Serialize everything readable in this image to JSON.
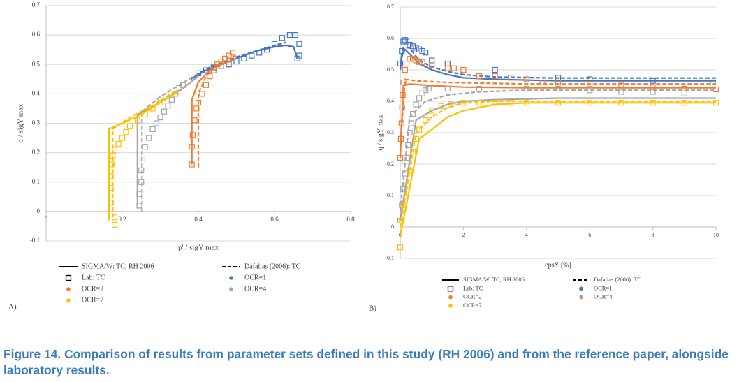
{
  "chart_data": [
    {
      "type": "line",
      "panel": "A)",
      "xlabel": "p' / sigY max",
      "ylabel": "q / sigY max",
      "xlim": [
        0,
        0.8
      ],
      "ylim": [
        -0.1,
        0.7
      ],
      "xticks": [
        0,
        0.2,
        0.4,
        0.6,
        0.8
      ],
      "yticks": [
        -0.1,
        0,
        0.1,
        0.2,
        0.3,
        0.4,
        0.5,
        0.6,
        0.7
      ],
      "grid": true,
      "legend": [
        {
          "label": "SIGMA/W: TC, RH 2006",
          "marker": "solid",
          "color": "#000000"
        },
        {
          "label": "Dafalias (2006): TC",
          "marker": "dashed",
          "color": "#000000"
        },
        {
          "label": "Lab: TC",
          "marker": "square",
          "color": "#000000"
        },
        {
          "label": "OCR=1",
          "marker": "dot",
          "color": "#4472c4"
        },
        {
          "label": "OCR=2",
          "marker": "dot",
          "color": "#ed7d31"
        },
        {
          "label": "OCR=4",
          "marker": "dot",
          "color": "#a5a5a5"
        },
        {
          "label": "OCR=7",
          "marker": "dot",
          "color": "#ffc000"
        }
      ],
      "series": [
        {
          "style": "solid",
          "color": "#4472c4",
          "x": [
            0.38,
            0.42,
            0.46,
            0.5,
            0.55,
            0.6,
            0.63,
            0.65,
            0.66
          ],
          "values": [
            0.45,
            0.48,
            0.5,
            0.52,
            0.545,
            0.56,
            0.565,
            0.56,
            0.52
          ]
        },
        {
          "style": "dashed",
          "color": "#4472c4",
          "x": [
            0.38,
            0.42,
            0.46,
            0.5,
            0.55,
            0.6,
            0.63
          ],
          "values": [
            0.45,
            0.485,
            0.505,
            0.525,
            0.545,
            0.565,
            0.575
          ]
        },
        {
          "style": "square",
          "color": "#4472c4",
          "x": [
            0.4,
            0.42,
            0.44,
            0.46,
            0.48,
            0.5,
            0.52,
            0.54,
            0.56,
            0.58,
            0.6,
            0.62,
            0.64,
            0.655,
            0.665,
            0.665,
            0.66
          ],
          "values": [
            0.47,
            0.48,
            0.49,
            0.495,
            0.5,
            0.51,
            0.52,
            0.53,
            0.54,
            0.55,
            0.57,
            0.59,
            0.6,
            0.6,
            0.57,
            0.53,
            0.52
          ]
        },
        {
          "style": "solid",
          "color": "#ed7d31",
          "x": [
            0.383,
            0.383,
            0.4,
            0.43,
            0.46,
            0.5
          ],
          "values": [
            0.16,
            0.38,
            0.44,
            0.48,
            0.5,
            0.52
          ]
        },
        {
          "style": "dashed",
          "color": "#ed7d31",
          "x": [
            0.4,
            0.4,
            0.42,
            0.45,
            0.48,
            0.5
          ],
          "values": [
            0.15,
            0.4,
            0.46,
            0.5,
            0.52,
            0.53
          ]
        },
        {
          "style": "square",
          "color": "#ed7d31",
          "x": [
            0.383,
            0.383,
            0.385,
            0.39,
            0.395,
            0.4,
            0.41,
            0.42,
            0.43,
            0.44,
            0.45,
            0.46,
            0.47,
            0.48,
            0.49
          ],
          "values": [
            0.16,
            0.22,
            0.26,
            0.31,
            0.35,
            0.37,
            0.4,
            0.43,
            0.46,
            0.48,
            0.5,
            0.51,
            0.52,
            0.53,
            0.54
          ]
        },
        {
          "style": "solid",
          "color": "#a5a5a5",
          "x": [
            0.24,
            0.24,
            0.3,
            0.36,
            0.4
          ],
          "values": [
            0.02,
            0.33,
            0.37,
            0.42,
            0.46
          ]
        },
        {
          "style": "dashed",
          "color": "#a5a5a5",
          "x": [
            0.252,
            0.252,
            0.3,
            0.35,
            0.4
          ],
          "values": [
            0,
            0.34,
            0.39,
            0.43,
            0.47
          ]
        },
        {
          "style": "square",
          "color": "#a5a5a5",
          "x": [
            0.245,
            0.245,
            0.25,
            0.25,
            0.253,
            0.26,
            0.27,
            0.28,
            0.29,
            0.3,
            0.31,
            0.32,
            0.33,
            0.34,
            0.35,
            0.36
          ],
          "values": [
            0.02,
            0.06,
            0.1,
            0.14,
            0.18,
            0.22,
            0.25,
            0.28,
            0.3,
            0.32,
            0.34,
            0.36,
            0.38,
            0.4,
            0.42,
            0.43
          ]
        },
        {
          "style": "solid",
          "color": "#ffc000",
          "x": [
            0.165,
            0.165,
            0.2,
            0.25,
            0.3,
            0.35
          ],
          "values": [
            -0.03,
            0.28,
            0.3,
            0.33,
            0.37,
            0.41
          ]
        },
        {
          "style": "dashed",
          "color": "#ffc000",
          "x": [
            0.175,
            0.175,
            0.22,
            0.28,
            0.34
          ],
          "values": [
            -0.02,
            0.28,
            0.32,
            0.36,
            0.41
          ]
        },
        {
          "style": "square",
          "color": "#ffc000",
          "x": [
            0.18,
            0.18,
            0.17,
            0.17,
            0.17,
            0.172,
            0.175,
            0.18,
            0.19,
            0.2,
            0.21,
            0.22,
            0.24,
            0.26,
            0.28,
            0.3
          ],
          "values": [
            -0.045,
            -0.02,
            0.03,
            0.08,
            0.12,
            0.16,
            0.19,
            0.21,
            0.23,
            0.25,
            0.27,
            0.29,
            0.31,
            0.33,
            0.35,
            0.37
          ]
        }
      ]
    },
    {
      "type": "line",
      "panel": "B)",
      "xlabel": "epsY [%]",
      "ylabel": "q / sigY max",
      "xlim": [
        0,
        10
      ],
      "ylim": [
        -0.1,
        0.7
      ],
      "xticks": [
        0,
        2,
        4,
        6,
        8,
        10
      ],
      "yticks": [
        -0.1,
        0,
        0.1,
        0.2,
        0.3,
        0.4,
        0.5,
        0.6,
        0.7
      ],
      "grid": true,
      "legend": [
        {
          "label": "SIGMA/W: TC, RH 2006",
          "marker": "solid",
          "color": "#000000"
        },
        {
          "label": "Dafalias (2006): TC",
          "marker": "dashed",
          "color": "#000000"
        },
        {
          "label": "Lab: TC",
          "marker": "square",
          "color": "#000000"
        },
        {
          "label": "OCR=1",
          "marker": "dot",
          "color": "#4472c4"
        },
        {
          "label": "OCR=2",
          "marker": "dot",
          "color": "#ed7d31"
        },
        {
          "label": "OCR=4",
          "marker": "dot",
          "color": "#a5a5a5"
        },
        {
          "label": "OCR=7",
          "marker": "dot",
          "color": "#ffc000"
        }
      ],
      "series": [
        {
          "style": "solid",
          "color": "#4472c4",
          "x": [
            0,
            0.05,
            0.15,
            0.3,
            0.6,
            1,
            1.5,
            2,
            3,
            5,
            10
          ],
          "values": [
            0.5,
            0.55,
            0.565,
            0.55,
            0.52,
            0.5,
            0.485,
            0.475,
            0.47,
            0.465,
            0.465
          ]
        },
        {
          "style": "dashed",
          "color": "#4472c4",
          "x": [
            0,
            0.1,
            0.3,
            0.6,
            1,
            1.5,
            2,
            3,
            5,
            10
          ],
          "values": [
            0.5,
            0.57,
            0.57,
            0.53,
            0.51,
            0.495,
            0.485,
            0.477,
            0.474,
            0.474
          ]
        },
        {
          "style": "square",
          "color": "#4472c4",
          "x": [
            0,
            0.05,
            0.1,
            0.15,
            0.2,
            0.3,
            0.4,
            0.5,
            0.6,
            0.7,
            0.8,
            1,
            1.5,
            3,
            5,
            6,
            8,
            9.9
          ],
          "values": [
            0.52,
            0.56,
            0.59,
            0.595,
            0.59,
            0.58,
            0.575,
            0.57,
            0.565,
            0.56,
            0.555,
            0.53,
            0.52,
            0.5,
            0.475,
            0.47,
            0.465,
            0.46
          ]
        },
        {
          "style": "solid",
          "color": "#ed7d31",
          "x": [
            0,
            0.1,
            0.3,
            1,
            2,
            4,
            10
          ],
          "values": [
            0.22,
            0.45,
            0.455,
            0.45,
            0.445,
            0.443,
            0.443
          ]
        },
        {
          "style": "dashed",
          "color": "#ed7d31",
          "x": [
            0,
            0.15,
            0.5,
            1.5,
            4,
            10
          ],
          "values": [
            0.25,
            0.47,
            0.465,
            0.46,
            0.455,
            0.455
          ]
        },
        {
          "style": "square",
          "color": "#ed7d31",
          "x": [
            0,
            0.02,
            0.04,
            0.06,
            0.08,
            0.1,
            0.15,
            0.2,
            0.3,
            0.4,
            0.5,
            0.6,
            0.7,
            1,
            1.5,
            1.7,
            2,
            2.5,
            3,
            3.5,
            4,
            4.5,
            5,
            6,
            7,
            8,
            9,
            10
          ],
          "values": [
            0.22,
            0.28,
            0.33,
            0.38,
            0.42,
            0.46,
            0.5,
            0.52,
            0.535,
            0.535,
            0.53,
            0.525,
            0.525,
            0.515,
            0.505,
            0.505,
            0.5,
            0.48,
            0.48,
            0.475,
            0.47,
            0.46,
            0.46,
            0.455,
            0.45,
            0.445,
            0.44,
            0.438
          ]
        },
        {
          "style": "solid",
          "color": "#a5a5a5",
          "x": [
            0,
            0.5,
            1,
            1.5,
            2,
            3,
            5,
            10
          ],
          "values": [
            0.02,
            0.34,
            0.37,
            0.39,
            0.4,
            0.405,
            0.41,
            0.41
          ]
        },
        {
          "style": "dashed",
          "color": "#a5a5a5",
          "x": [
            0,
            0.3,
            0.8,
            1.5,
            2.5,
            4,
            10
          ],
          "values": [
            0.05,
            0.35,
            0.4,
            0.42,
            0.43,
            0.435,
            0.435
          ]
        },
        {
          "style": "square",
          "color": "#a5a5a5",
          "x": [
            0,
            0.05,
            0.1,
            0.15,
            0.2,
            0.25,
            0.3,
            0.35,
            0.4,
            0.5,
            0.6,
            0.7,
            0.8,
            0.9,
            1.5,
            2.5,
            4,
            5,
            6,
            7,
            8,
            9
          ],
          "values": [
            0.02,
            0.07,
            0.12,
            0.17,
            0.22,
            0.26,
            0.3,
            0.33,
            0.36,
            0.39,
            0.41,
            0.425,
            0.435,
            0.44,
            0.44,
            0.44,
            0.44,
            0.44,
            0.435,
            0.43,
            0.43,
            0.425
          ]
        },
        {
          "style": "solid",
          "color": "#ffc000",
          "x": [
            0,
            0.6,
            1,
            1.5,
            2,
            3,
            4,
            10
          ],
          "values": [
            -0.03,
            0.28,
            0.31,
            0.35,
            0.37,
            0.39,
            0.395,
            0.395
          ]
        },
        {
          "style": "dashed",
          "color": "#ffc000",
          "x": [
            0,
            0.5,
            1,
            1.5,
            2,
            3,
            5,
            10
          ],
          "values": [
            0,
            0.3,
            0.35,
            0.38,
            0.395,
            0.4,
            0.4,
            0.4
          ]
        },
        {
          "style": "square",
          "color": "#ffc000",
          "x": [
            0,
            0.05,
            0.1,
            0.2,
            0.3,
            0.4,
            0.5,
            0.6,
            0.8,
            1,
            1.3,
            1.6,
            2,
            2.5,
            3,
            3.5,
            4,
            5,
            6,
            7,
            8,
            9,
            10
          ],
          "values": [
            -0.065,
            0.02,
            0.07,
            0.13,
            0.18,
            0.24,
            0.28,
            0.31,
            0.34,
            0.37,
            0.385,
            0.39,
            0.395,
            0.395,
            0.395,
            0.395,
            0.395,
            0.395,
            0.395,
            0.395,
            0.395,
            0.395,
            0.395
          ]
        }
      ]
    }
  ],
  "caption": "Figure 14. Comparison of results from parameter sets defined in this study (RH 2006) and from the reference paper, alongside laboratory results."
}
